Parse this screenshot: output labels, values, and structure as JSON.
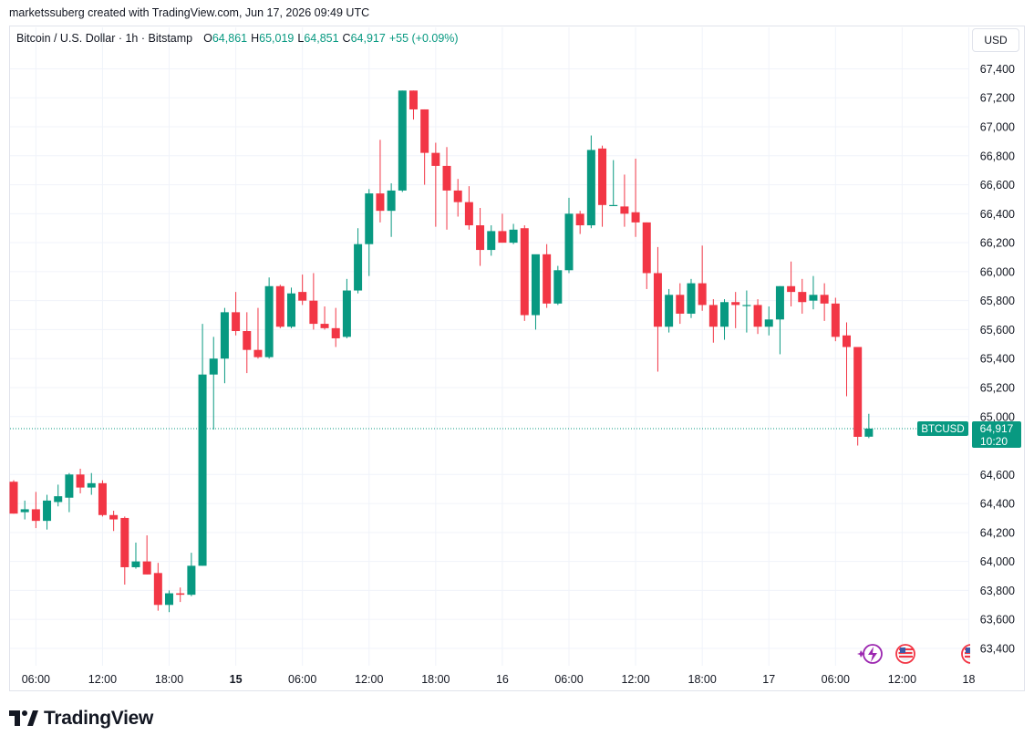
{
  "credit_text": "marketssuberg created with TradingView.com, Jun 17, 2026 09:49 UTC",
  "legend": {
    "symbol_desc": "Bitcoin / U.S. Dollar · 1h · Bitstamp",
    "o_label": "O",
    "o_value": "64,861",
    "h_label": "H",
    "h_value": "65,019",
    "l_label": "L",
    "l_value": "64,851",
    "c_label": "C",
    "c_value": "64,917",
    "change": "+55 (+0.09%)"
  },
  "currency_button": "USD",
  "price_label": {
    "symbol": "BTCUSD",
    "price": "64,917",
    "countdown": "10:20"
  },
  "footer_brand": "TradingView",
  "colors": {
    "up": "#089981",
    "down": "#f23645",
    "grid": "#f0f3fa",
    "text": "#131722",
    "axis_text": "#131722"
  },
  "icons": [
    "lightning-event-icon",
    "us-flag-economic-event-icon",
    "us-flag-economic-event-icon"
  ],
  "chart_data": {
    "type": "candlestick",
    "timeframe": "1h",
    "y_ticks": [
      63400,
      63600,
      63800,
      64000,
      64200,
      64400,
      64600,
      65000,
      65200,
      65400,
      65600,
      65800,
      66000,
      66200,
      66400,
      66600,
      66800,
      67000,
      67200,
      67400
    ],
    "y_tick_labels": [
      "63,400",
      "63,600",
      "63,800",
      "64,000",
      "64,200",
      "64,400",
      "64,600",
      "65,000",
      "65,200",
      "65,400",
      "65,600",
      "65,800",
      "66,000",
      "66,200",
      "66,400",
      "66,600",
      "66,800",
      "67,000",
      "67,200",
      "67,400"
    ],
    "ylim": [
      63280,
      67510
    ],
    "x_ticks": [
      {
        "label": "06:00",
        "bar": 2
      },
      {
        "label": "12:00",
        "bar": 8
      },
      {
        "label": "18:00",
        "bar": 14
      },
      {
        "label": "15",
        "bar": 20,
        "bold": true
      },
      {
        "label": "06:00",
        "bar": 26
      },
      {
        "label": "12:00",
        "bar": 32
      },
      {
        "label": "18:00",
        "bar": 38
      },
      {
        "label": "16",
        "bar": 44
      },
      {
        "label": "06:00",
        "bar": 50
      },
      {
        "label": "12:00",
        "bar": 56
      },
      {
        "label": "18:00",
        "bar": 62
      },
      {
        "label": "17",
        "bar": 68
      },
      {
        "label": "06:00",
        "bar": 74
      },
      {
        "label": "12:00",
        "bar": 80
      },
      {
        "label": "18",
        "bar": 86
      }
    ],
    "last_price": 64917,
    "candles": [
      {
        "o": 64550,
        "h": 64560,
        "l": 64330,
        "c": 64330
      },
      {
        "o": 64340,
        "h": 64420,
        "l": 64290,
        "c": 64360
      },
      {
        "o": 64360,
        "h": 64480,
        "l": 64230,
        "c": 64280
      },
      {
        "o": 64280,
        "h": 64460,
        "l": 64220,
        "c": 64420
      },
      {
        "o": 64410,
        "h": 64530,
        "l": 64380,
        "c": 64450
      },
      {
        "o": 64440,
        "h": 64610,
        "l": 64340,
        "c": 64600
      },
      {
        "o": 64600,
        "h": 64640,
        "l": 64470,
        "c": 64510
      },
      {
        "o": 64510,
        "h": 64610,
        "l": 64460,
        "c": 64540
      },
      {
        "o": 64540,
        "h": 64560,
        "l": 64310,
        "c": 64320
      },
      {
        "o": 64320,
        "h": 64350,
        "l": 64210,
        "c": 64290
      },
      {
        "o": 64300,
        "h": 64310,
        "l": 63840,
        "c": 63960
      },
      {
        "o": 63960,
        "h": 64130,
        "l": 63950,
        "c": 64000
      },
      {
        "o": 64000,
        "h": 64180,
        "l": 63910,
        "c": 63910
      },
      {
        "o": 63920,
        "h": 63990,
        "l": 63660,
        "c": 63700
      },
      {
        "o": 63700,
        "h": 63800,
        "l": 63650,
        "c": 63780
      },
      {
        "o": 63780,
        "h": 63820,
        "l": 63720,
        "c": 63770
      },
      {
        "o": 63770,
        "h": 64060,
        "l": 63760,
        "c": 63970
      },
      {
        "o": 63970,
        "h": 65640,
        "l": 63970,
        "c": 65290
      },
      {
        "o": 65290,
        "h": 65550,
        "l": 64910,
        "c": 65400
      },
      {
        "o": 65400,
        "h": 65750,
        "l": 65230,
        "c": 65720
      },
      {
        "o": 65720,
        "h": 65860,
        "l": 65560,
        "c": 65590
      },
      {
        "o": 65590,
        "h": 65720,
        "l": 65300,
        "c": 65460
      },
      {
        "o": 65460,
        "h": 65750,
        "l": 65400,
        "c": 65410
      },
      {
        "o": 65410,
        "h": 65960,
        "l": 65400,
        "c": 65900
      },
      {
        "o": 65900,
        "h": 65910,
        "l": 65610,
        "c": 65620
      },
      {
        "o": 65620,
        "h": 65890,
        "l": 65610,
        "c": 65850
      },
      {
        "o": 65860,
        "h": 65980,
        "l": 65770,
        "c": 65800
      },
      {
        "o": 65800,
        "h": 65990,
        "l": 65600,
        "c": 65640
      },
      {
        "o": 65640,
        "h": 65760,
        "l": 65600,
        "c": 65610
      },
      {
        "o": 65610,
        "h": 65750,
        "l": 65480,
        "c": 65540
      },
      {
        "o": 65550,
        "h": 65950,
        "l": 65540,
        "c": 65870
      },
      {
        "o": 65870,
        "h": 66300,
        "l": 65850,
        "c": 66190
      },
      {
        "o": 66190,
        "h": 66570,
        "l": 65970,
        "c": 66540
      },
      {
        "o": 66540,
        "h": 66910,
        "l": 66340,
        "c": 66420
      },
      {
        "o": 66420,
        "h": 66610,
        "l": 66240,
        "c": 66560
      },
      {
        "o": 66560,
        "h": 67250,
        "l": 66550,
        "c": 67250
      },
      {
        "o": 67250,
        "h": 67250,
        "l": 67050,
        "c": 67120
      },
      {
        "o": 67120,
        "h": 67120,
        "l": 66600,
        "c": 66820
      },
      {
        "o": 66820,
        "h": 66890,
        "l": 66310,
        "c": 66730
      },
      {
        "o": 66730,
        "h": 66860,
        "l": 66290,
        "c": 66560
      },
      {
        "o": 66560,
        "h": 66640,
        "l": 66380,
        "c": 66480
      },
      {
        "o": 66480,
        "h": 66590,
        "l": 66290,
        "c": 66320
      },
      {
        "o": 66320,
        "h": 66440,
        "l": 66040,
        "c": 66150
      },
      {
        "o": 66150,
        "h": 66320,
        "l": 66110,
        "c": 66280
      },
      {
        "o": 66280,
        "h": 66400,
        "l": 66200,
        "c": 66200
      },
      {
        "o": 66200,
        "h": 66330,
        "l": 66190,
        "c": 66290
      },
      {
        "o": 66300,
        "h": 66320,
        "l": 65660,
        "c": 65700
      },
      {
        "o": 65700,
        "h": 66100,
        "l": 65600,
        "c": 66120
      },
      {
        "o": 66120,
        "h": 66190,
        "l": 65750,
        "c": 65780
      },
      {
        "o": 65780,
        "h": 66040,
        "l": 65770,
        "c": 66010
      },
      {
        "o": 66010,
        "h": 66510,
        "l": 65990,
        "c": 66400
      },
      {
        "o": 66400,
        "h": 66420,
        "l": 66260,
        "c": 66320
      },
      {
        "o": 66320,
        "h": 66940,
        "l": 66300,
        "c": 66840
      },
      {
        "o": 66850,
        "h": 66870,
        "l": 66310,
        "c": 66460
      },
      {
        "o": 66460,
        "h": 66770,
        "l": 66460,
        "c": 66460
      },
      {
        "o": 66450,
        "h": 66670,
        "l": 66310,
        "c": 66400
      },
      {
        "o": 66410,
        "h": 66780,
        "l": 66240,
        "c": 66340
      },
      {
        "o": 66340,
        "h": 66340,
        "l": 65880,
        "c": 65990
      },
      {
        "o": 65990,
        "h": 66170,
        "l": 65310,
        "c": 65620
      },
      {
        "o": 65620,
        "h": 65880,
        "l": 65580,
        "c": 65840
      },
      {
        "o": 65840,
        "h": 65920,
        "l": 65640,
        "c": 65710
      },
      {
        "o": 65710,
        "h": 65950,
        "l": 65680,
        "c": 65920
      },
      {
        "o": 65920,
        "h": 66180,
        "l": 65730,
        "c": 65770
      },
      {
        "o": 65770,
        "h": 65810,
        "l": 65510,
        "c": 65620
      },
      {
        "o": 65620,
        "h": 65810,
        "l": 65530,
        "c": 65790
      },
      {
        "o": 65790,
        "h": 65860,
        "l": 65610,
        "c": 65770
      },
      {
        "o": 65770,
        "h": 65870,
        "l": 65580,
        "c": 65770
      },
      {
        "o": 65770,
        "h": 65810,
        "l": 65570,
        "c": 65620
      },
      {
        "o": 65620,
        "h": 65760,
        "l": 65560,
        "c": 65670
      },
      {
        "o": 65670,
        "h": 65900,
        "l": 65430,
        "c": 65900
      },
      {
        "o": 65900,
        "h": 66070,
        "l": 65760,
        "c": 65860
      },
      {
        "o": 65860,
        "h": 65950,
        "l": 65710,
        "c": 65790
      },
      {
        "o": 65800,
        "h": 65970,
        "l": 65740,
        "c": 65840
      },
      {
        "o": 65840,
        "h": 65920,
        "l": 65660,
        "c": 65780
      },
      {
        "o": 65780,
        "h": 65820,
        "l": 65520,
        "c": 65550
      },
      {
        "o": 65560,
        "h": 65650,
        "l": 65140,
        "c": 65480
      },
      {
        "o": 65480,
        "h": 65480,
        "l": 64800,
        "c": 64860
      },
      {
        "o": 64861,
        "h": 65019,
        "l": 64851,
        "c": 64917
      }
    ]
  }
}
